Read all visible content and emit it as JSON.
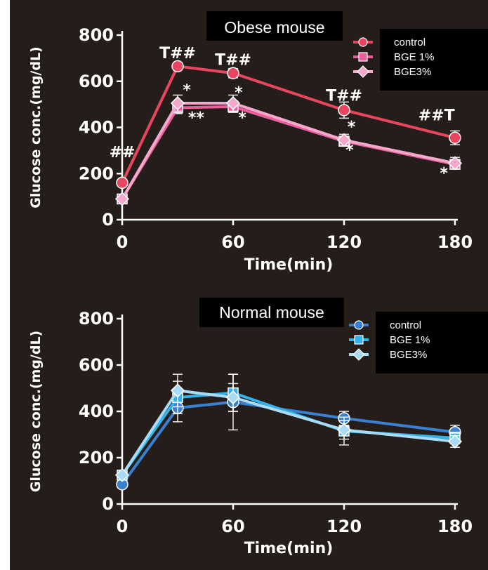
{
  "chart_data": [
    {
      "type": "line",
      "title": "Obese mouse",
      "xlabel": "Time(min)",
      "ylabel": "Glucose conc.(mg/dL)",
      "x": [
        0,
        30,
        60,
        120,
        180
      ],
      "xticks": [
        "0",
        "60",
        "120",
        "180"
      ],
      "yticks": [
        "0",
        "200",
        "400",
        "600",
        "800"
      ],
      "xlim": [
        0,
        180
      ],
      "ylim": [
        0,
        800
      ],
      "legend_position": "top-right",
      "series": [
        {
          "name": "control",
          "color": "#e8465e",
          "values": [
            160,
            665,
            635,
            475,
            355
          ],
          "errors": [
            0,
            15,
            20,
            35,
            30
          ]
        },
        {
          "name": "BGE 1%",
          "color": "#ec5d9c",
          "values": [
            90,
            485,
            490,
            340,
            240
          ],
          "errors": [
            0,
            25,
            25,
            20,
            20
          ]
        },
        {
          "name": "BGE3%",
          "color": "#f4a8cc",
          "values": [
            90,
            505,
            505,
            345,
            245
          ],
          "errors": [
            0,
            35,
            35,
            25,
            25
          ]
        }
      ],
      "annotations": [
        {
          "text": "##",
          "x": 0,
          "y": 270
        },
        {
          "text": "T##",
          "x": 30,
          "y": 700
        },
        {
          "text": "T##",
          "x": 60,
          "y": 670
        },
        {
          "text": "T##",
          "x": 120,
          "y": 515
        },
        {
          "text": "##T",
          "x": 170,
          "y": 430
        },
        {
          "text": "*",
          "x": 35,
          "y": 540
        },
        {
          "text": "**",
          "x": 40,
          "y": 420
        },
        {
          "text": "*",
          "x": 63,
          "y": 530
        },
        {
          "text": "*",
          "x": 65,
          "y": 420
        },
        {
          "text": "*",
          "x": 124,
          "y": 380
        },
        {
          "text": "*",
          "x": 123,
          "y": 280
        },
        {
          "text": "*",
          "x": 174,
          "y": 180
        }
      ]
    },
    {
      "type": "line",
      "title": "Normal mouse",
      "xlabel": "Time(min)",
      "ylabel": "Glucose conc.(mg/dL)",
      "x": [
        0,
        30,
        60,
        120,
        180
      ],
      "xticks": [
        "0",
        "60",
        "120",
        "180"
      ],
      "yticks": [
        "0",
        "200",
        "400",
        "600",
        "800"
      ],
      "xlim": [
        0,
        180
      ],
      "ylim": [
        0,
        800
      ],
      "legend_position": "top-right",
      "series": [
        {
          "name": "control",
          "color": "#3a7fd0",
          "values": [
            85,
            415,
            440,
            370,
            310
          ],
          "errors": [
            0,
            60,
            120,
            30,
            30
          ]
        },
        {
          "name": "BGE 1%",
          "color": "#36b2ea",
          "values": [
            125,
            460,
            480,
            315,
            285
          ],
          "errors": [
            0,
            70,
            80,
            60,
            25
          ]
        },
        {
          "name": "BGE3%",
          "color": "#a9dcf4",
          "values": [
            125,
            490,
            460,
            320,
            270
          ],
          "errors": [
            0,
            70,
            60,
            40,
            25
          ]
        }
      ]
    }
  ]
}
